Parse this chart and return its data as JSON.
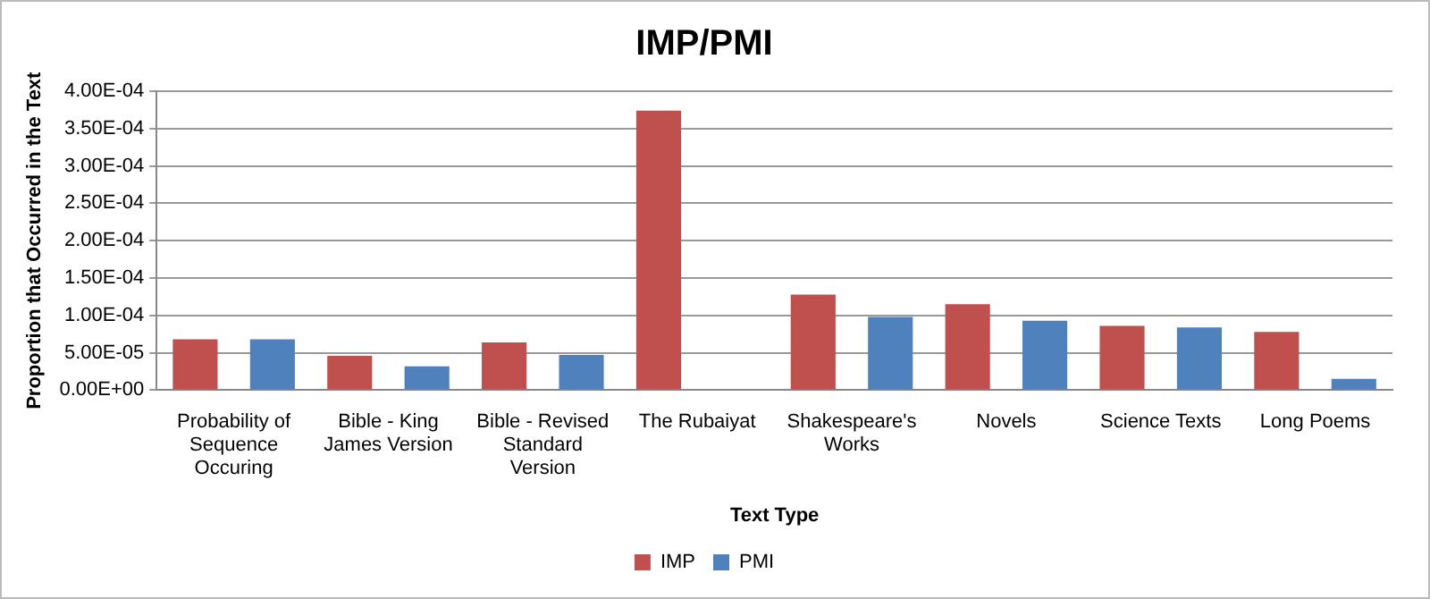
{
  "chart_data": {
    "type": "bar",
    "title": "IMP/PMI",
    "xlabel": "Text Type",
    "ylabel": "Proportion that Occurred in the Text",
    "categories": [
      "Probability of Sequence Occuring",
      "Bible - King James Version",
      "Bible - Revised Standard Version",
      "The Rubaiyat",
      "Shakespeare's Works",
      "Novels",
      "Science Texts",
      "Long Poems"
    ],
    "series": [
      {
        "name": "IMP",
        "color": "#c0504d",
        "values": [
          6.8e-05,
          4.6e-05,
          6.4e-05,
          0.000374,
          0.000128,
          0.000115,
          8.6e-05,
          7.8e-05
        ]
      },
      {
        "name": "PMI",
        "color": "#4f81bd",
        "values": [
          6.8e-05,
          3.2e-05,
          4.7e-05,
          null,
          9.8e-05,
          9.3e-05,
          8.4e-05,
          1.5e-05
        ]
      }
    ],
    "ylim": [
      0,
      0.0004
    ],
    "yticks": [
      {
        "value": 0,
        "label": "0.00E+00"
      },
      {
        "value": 5e-05,
        "label": "5.00E-05"
      },
      {
        "value": 0.0001,
        "label": "1.00E-04"
      },
      {
        "value": 0.00015,
        "label": "1.50E-04"
      },
      {
        "value": 0.0002,
        "label": "2.00E-04"
      },
      {
        "value": 0.00025,
        "label": "2.50E-04"
      },
      {
        "value": 0.0003,
        "label": "3.00E-04"
      },
      {
        "value": 0.00035,
        "label": "3.50E-04"
      },
      {
        "value": 0.0004,
        "label": "4.00E-04"
      }
    ],
    "grid": "y",
    "legend": "bottom"
  }
}
